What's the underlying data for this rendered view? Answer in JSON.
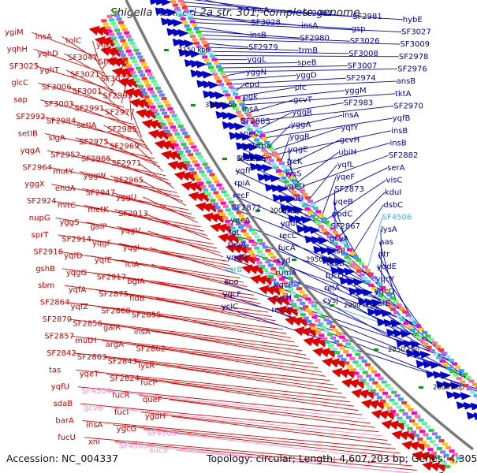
{
  "title": "Shigella flexneri 2a str. 301, complete genome",
  "accession_label": "Accession: NC_004337",
  "topology_label": "Topology: circular; Length: 4,607,203 bp; Genes: 4,305",
  "colors": {
    "reverse_strand": "#e00000",
    "forward_strand": "#0000cc",
    "backbone": "#808080",
    "tick": "#1a8a1a",
    "pseudogene": "#ff88cc",
    "rna": "#44aaee"
  },
  "ticks": [
    "3150 kbp",
    "3100 kbp",
    "3050 kbp",
    "3000 kbp",
    "2950 kbp",
    "2900 kbp",
    "2850 kbp",
    "2800 kbp"
  ],
  "left_labels": [
    {
      "t": "ygiM"
    },
    {
      "t": "insA"
    },
    {
      "t": "tolC"
    },
    {
      "t": "ygiX"
    },
    {
      "t": "yqhH"
    },
    {
      "t": "yqhD"
    },
    {
      "t": "SF3047"
    },
    {
      "t": "SF3036"
    },
    {
      "t": "SF3025"
    },
    {
      "t": "yghT"
    },
    {
      "t": "SF3021"
    },
    {
      "t": "SF3022"
    },
    {
      "t": "glcC"
    },
    {
      "t": "SF3006"
    },
    {
      "t": "SF3001"
    },
    {
      "t": "SF2993"
    },
    {
      "t": "sap"
    },
    {
      "t": "SF3003"
    },
    {
      "t": "SF2991"
    },
    {
      "t": "SF2977"
    },
    {
      "t": "SF2992"
    },
    {
      "t": "SF2984"
    },
    {
      "t": "setIA"
    },
    {
      "t": "SF2985"
    },
    {
      "t": "setIB"
    },
    {
      "t": "sigA"
    },
    {
      "t": "SF2975"
    },
    {
      "t": "SF2969"
    },
    {
      "t": "yqgA"
    },
    {
      "t": "SF2952"
    },
    {
      "t": "SF2966"
    },
    {
      "t": "SF2971"
    },
    {
      "t": "SF2964"
    },
    {
      "t": "mutY"
    },
    {
      "t": "yggW"
    },
    {
      "t": "SF2965"
    },
    {
      "t": "yggX"
    },
    {
      "t": "endA"
    },
    {
      "t": "SF2947"
    },
    {
      "t": "yggU"
    },
    {
      "t": "SF2924"
    },
    {
      "t": "mltC"
    },
    {
      "t": "metK"
    },
    {
      "t": "SF2913"
    },
    {
      "t": "nupG"
    },
    {
      "t": "yggS"
    },
    {
      "t": "galP"
    },
    {
      "t": "yqgV"
    },
    {
      "t": "sprT"
    },
    {
      "t": "SF2914"
    },
    {
      "t": "yqgF"
    },
    {
      "t": "yqgI"
    },
    {
      "t": "SF2916"
    },
    {
      "t": "yqfD"
    },
    {
      "t": "yqfE"
    },
    {
      "t": "iciA"
    },
    {
      "t": "gshB"
    },
    {
      "t": "yqgG"
    },
    {
      "t": "SF2917"
    },
    {
      "t": "bglA"
    },
    {
      "t": "sbm"
    },
    {
      "t": "yqfA"
    },
    {
      "t": "SF2875"
    },
    {
      "t": "fldB"
    },
    {
      "t": "SF2864"
    },
    {
      "t": "yqfZ"
    },
    {
      "t": "SF2868"
    },
    {
      "t": "SF2855"
    },
    {
      "t": "SF2870"
    },
    {
      "t": "SF2856"
    },
    {
      "t": "galR"
    },
    {
      "t": "insA"
    },
    {
      "t": "SF2857"
    },
    {
      "t": "mutH"
    },
    {
      "t": "argA"
    },
    {
      "t": "SF2862"
    },
    {
      "t": "SF2842"
    },
    {
      "t": "SF2863"
    },
    {
      "t": "SF2843"
    },
    {
      "t": "lysR"
    },
    {
      "t": "tas"
    },
    {
      "t": "yqeT"
    },
    {
      "t": "SF2824"
    },
    {
      "t": "fucP"
    },
    {
      "t": "yqfU"
    },
    {
      "t": "SF4504"
    },
    {
      "t": "fucR"
    },
    {
      "t": "queF"
    },
    {
      "t": "sdaB"
    },
    {
      "t": "gcvB"
    },
    {
      "t": "fucI"
    },
    {
      "t": "ygdH"
    },
    {
      "t": "barA"
    },
    {
      "t": "insA"
    },
    {
      "t": "ygcG"
    },
    {
      "t": "SF4505"
    },
    {
      "t": "fucU"
    },
    {
      "t": "xni"
    },
    {
      "t": "SF4503"
    },
    {
      "t": "sucS"
    }
  ],
  "right_labels": [
    {
      "t": "insA"
    },
    {
      "t": "SF2982"
    },
    {
      "t": "SF2981"
    },
    {
      "t": "hybE"
    },
    {
      "t": "SF3028"
    },
    {
      "t": "insA"
    },
    {
      "t": "gsp"
    },
    {
      "t": "SF3027"
    },
    {
      "t": "insB"
    },
    {
      "t": "SF2980"
    },
    {
      "t": "SF3026"
    },
    {
      "t": "SF3009"
    },
    {
      "t": "SF2979"
    },
    {
      "t": "trmB"
    },
    {
      "t": "SF3008"
    },
    {
      "t": "SF2978"
    },
    {
      "t": "yggL"
    },
    {
      "t": "speB"
    },
    {
      "t": "SF3007"
    },
    {
      "t": "SF2976"
    },
    {
      "t": "yggN"
    },
    {
      "t": "yggD"
    },
    {
      "t": "SF2974"
    },
    {
      "t": "ansB"
    },
    {
      "t": "epd"
    },
    {
      "t": "pic"
    },
    {
      "t": "yggM"
    },
    {
      "t": "tktA"
    },
    {
      "t": "pgk"
    },
    {
      "t": "gcvT"
    },
    {
      "t": "SF2983"
    },
    {
      "t": "SF2970"
    },
    {
      "t": "insA"
    },
    {
      "t": "yggR"
    },
    {
      "t": "insA"
    },
    {
      "t": "yqfB"
    },
    {
      "t": "SF2885"
    },
    {
      "t": "yggA"
    },
    {
      "t": "yqfY"
    },
    {
      "t": "insB"
    },
    {
      "t": "speC"
    },
    {
      "t": "yggR"
    },
    {
      "t": "gcvH"
    },
    {
      "t": "insB"
    },
    {
      "t": "insBrtba"
    },
    {
      "t": "yqgE"
    },
    {
      "t": "ubiH"
    },
    {
      "t": "SF2882"
    },
    {
      "t": "SF2865"
    },
    {
      "t": "frcK"
    },
    {
      "t": "yqfL"
    },
    {
      "t": "serA"
    },
    {
      "t": "yqfF"
    },
    {
      "t": "lysS"
    },
    {
      "t": "yqeF"
    },
    {
      "t": "visC"
    },
    {
      "t": "rpiA"
    },
    {
      "t": "yqeD"
    },
    {
      "t": "SF2873"
    },
    {
      "t": "kduI"
    },
    {
      "t": "recF"
    },
    {
      "t": "kduD"
    },
    {
      "t": "yqeB"
    },
    {
      "t": "dsbC"
    },
    {
      "t": "SF2872"
    },
    {
      "t": "araE"
    },
    {
      "t": "ppdC"
    },
    {
      "t": "SF4506"
    },
    {
      "t": "yqeA"
    },
    {
      "t": "yqdL"
    },
    {
      "t": "SF2867"
    },
    {
      "t": "lysA"
    },
    {
      "t": "lgt"
    },
    {
      "t": "recC"
    },
    {
      "t": "gcvA"
    },
    {
      "t": "aas"
    },
    {
      "t": "thyA"
    },
    {
      "t": "fucA"
    },
    {
      "t": "ptsP"
    },
    {
      "t": "ptr"
    },
    {
      "t": "yqdD"
    },
    {
      "t": "syd"
    },
    {
      "t": "recB"
    },
    {
      "t": "yqdE"
    },
    {
      "t": "csrB"
    },
    {
      "t": "rumA"
    },
    {
      "t": "fucO"
    },
    {
      "t": "yqcY"
    },
    {
      "t": "eno"
    },
    {
      "t": "yqcB"
    },
    {
      "t": "relA"
    },
    {
      "t": "yqcQ"
    },
    {
      "t": "yqcF"
    },
    {
      "t": "cysH"
    },
    {
      "t": "cysJ"
    },
    {
      "t": "surE"
    },
    {
      "t": "ycIC"
    },
    {
      "t": "recD"
    }
  ]
}
